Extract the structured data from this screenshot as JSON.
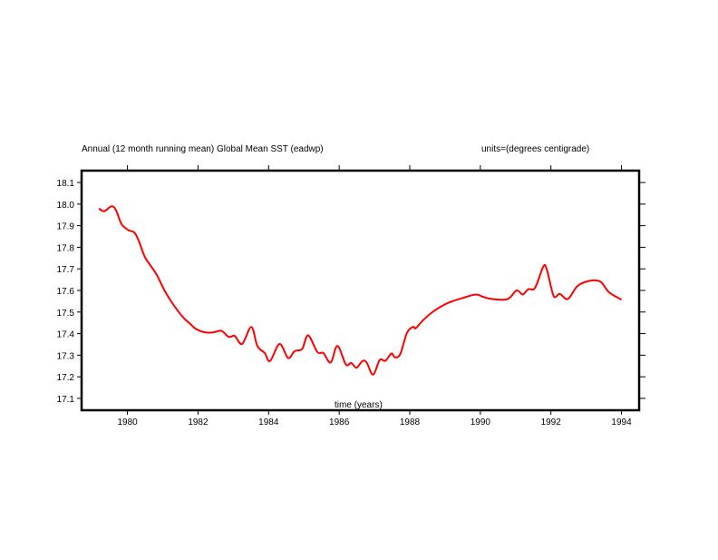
{
  "chart_data": {
    "type": "line",
    "title": "Annual (12 month running mean) Global Mean SST (eadwp)",
    "units_label": "units=(degrees centigrade)",
    "xlabel": "time (years)",
    "ylabel": "",
    "xlim": [
      1978.7,
      1994.5
    ],
    "ylim": [
      17.045,
      18.155
    ],
    "x_ticks": [
      1980,
      1982,
      1984,
      1986,
      1988,
      1990,
      1992,
      1994
    ],
    "x_tick_labels": [
      "1980",
      "1982",
      "1984",
      "1986",
      "1988",
      "1990",
      "1992",
      "1994"
    ],
    "y_ticks": [
      17.1,
      17.2,
      17.3,
      17.4,
      17.5,
      17.6,
      17.7,
      17.8,
      17.9,
      18.0,
      18.1
    ],
    "y_tick_labels": [
      "17.1",
      "17.2",
      "17.3",
      "17.4",
      "17.5",
      "17.6",
      "17.7",
      "17.8",
      "17.9",
      "18.0",
      "18.1"
    ],
    "grid": false,
    "series": [
      {
        "name": "Global Mean SST",
        "color": "#ff0000",
        "x": [
          1979.19,
          1979.34,
          1979.55,
          1979.68,
          1979.83,
          1980.02,
          1980.19,
          1980.31,
          1980.49,
          1980.66,
          1980.83,
          1981.0,
          1981.12,
          1981.34,
          1981.59,
          1981.76,
          1981.93,
          1982.19,
          1982.44,
          1982.66,
          1982.87,
          1983.04,
          1983.25,
          1983.51,
          1983.68,
          1983.89,
          1984.04,
          1984.31,
          1984.55,
          1984.74,
          1984.95,
          1985.12,
          1985.38,
          1985.55,
          1985.76,
          1985.95,
          1986.19,
          1986.34,
          1986.49,
          1986.66,
          1986.78,
          1986.96,
          1987.15,
          1987.31,
          1987.48,
          1987.58,
          1987.73,
          1987.92,
          1988.09,
          1988.17,
          1988.36,
          1988.62,
          1988.88,
          1989.14,
          1989.48,
          1989.87,
          1990.08,
          1990.34,
          1990.77,
          1991.03,
          1991.2,
          1991.36,
          1991.55,
          1991.79,
          1991.89,
          1992.08,
          1992.25,
          1992.48,
          1992.75,
          1993.09,
          1993.4,
          1993.65,
          1994.0
        ],
        "y": [
          17.98,
          17.967,
          17.99,
          17.97,
          17.908,
          17.88,
          17.869,
          17.834,
          17.756,
          17.714,
          17.672,
          17.616,
          17.58,
          17.525,
          17.473,
          17.448,
          17.423,
          17.406,
          17.406,
          17.413,
          17.385,
          17.389,
          17.352,
          17.431,
          17.343,
          17.31,
          17.273,
          17.352,
          17.287,
          17.319,
          17.329,
          17.392,
          17.315,
          17.31,
          17.266,
          17.343,
          17.257,
          17.264,
          17.242,
          17.273,
          17.266,
          17.21,
          17.278,
          17.274,
          17.308,
          17.29,
          17.305,
          17.403,
          17.431,
          17.425,
          17.459,
          17.497,
          17.525,
          17.546,
          17.564,
          17.581,
          17.57,
          17.56,
          17.56,
          17.6,
          17.581,
          17.606,
          17.612,
          17.712,
          17.693,
          17.574,
          17.584,
          17.56,
          17.62,
          17.644,
          17.641,
          17.591,
          17.557
        ]
      }
    ]
  }
}
